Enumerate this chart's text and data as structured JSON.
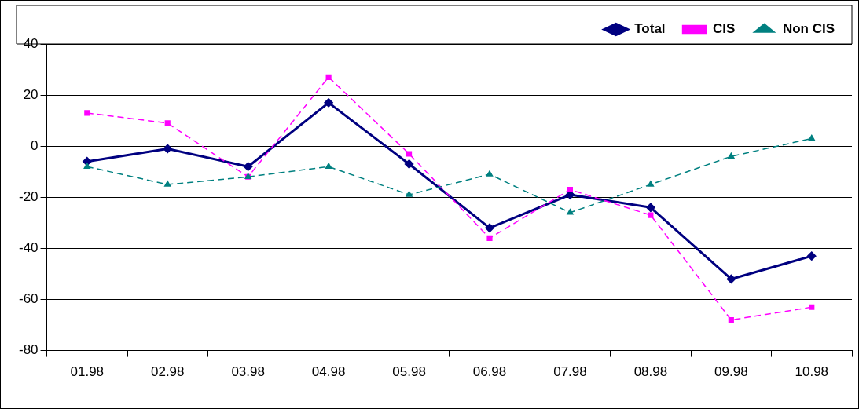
{
  "chart_data": {
    "type": "line",
    "categories": [
      "01.98",
      "02.98",
      "03.98",
      "04.98",
      "05.98",
      "06.98",
      "07.98",
      "08.98",
      "09.98",
      "10.98"
    ],
    "series": [
      {
        "name": "Total",
        "color": "#000080",
        "marker": "diamond",
        "line_style": "solid",
        "values": [
          -6,
          -1,
          -8,
          17,
          -7,
          -32,
          -19,
          -24,
          -52,
          -43
        ]
      },
      {
        "name": "CIS",
        "color": "#ff00ff",
        "marker": "square",
        "line_style": "dashed",
        "values": [
          13,
          9,
          -12,
          27,
          -3,
          -36,
          -17,
          -27,
          -68,
          -63
        ]
      },
      {
        "name": "Non CIS",
        "color": "#008080",
        "marker": "triangle",
        "line_style": "dashed",
        "values": [
          -8,
          -15,
          -12,
          -8,
          -19,
          -11,
          -26,
          -15,
          -4,
          3
        ]
      }
    ],
    "ylim": [
      -80,
      40
    ],
    "yticks": [
      -80,
      -60,
      -40,
      -20,
      0,
      20,
      40
    ],
    "grid": "y",
    "legend": "top right"
  }
}
